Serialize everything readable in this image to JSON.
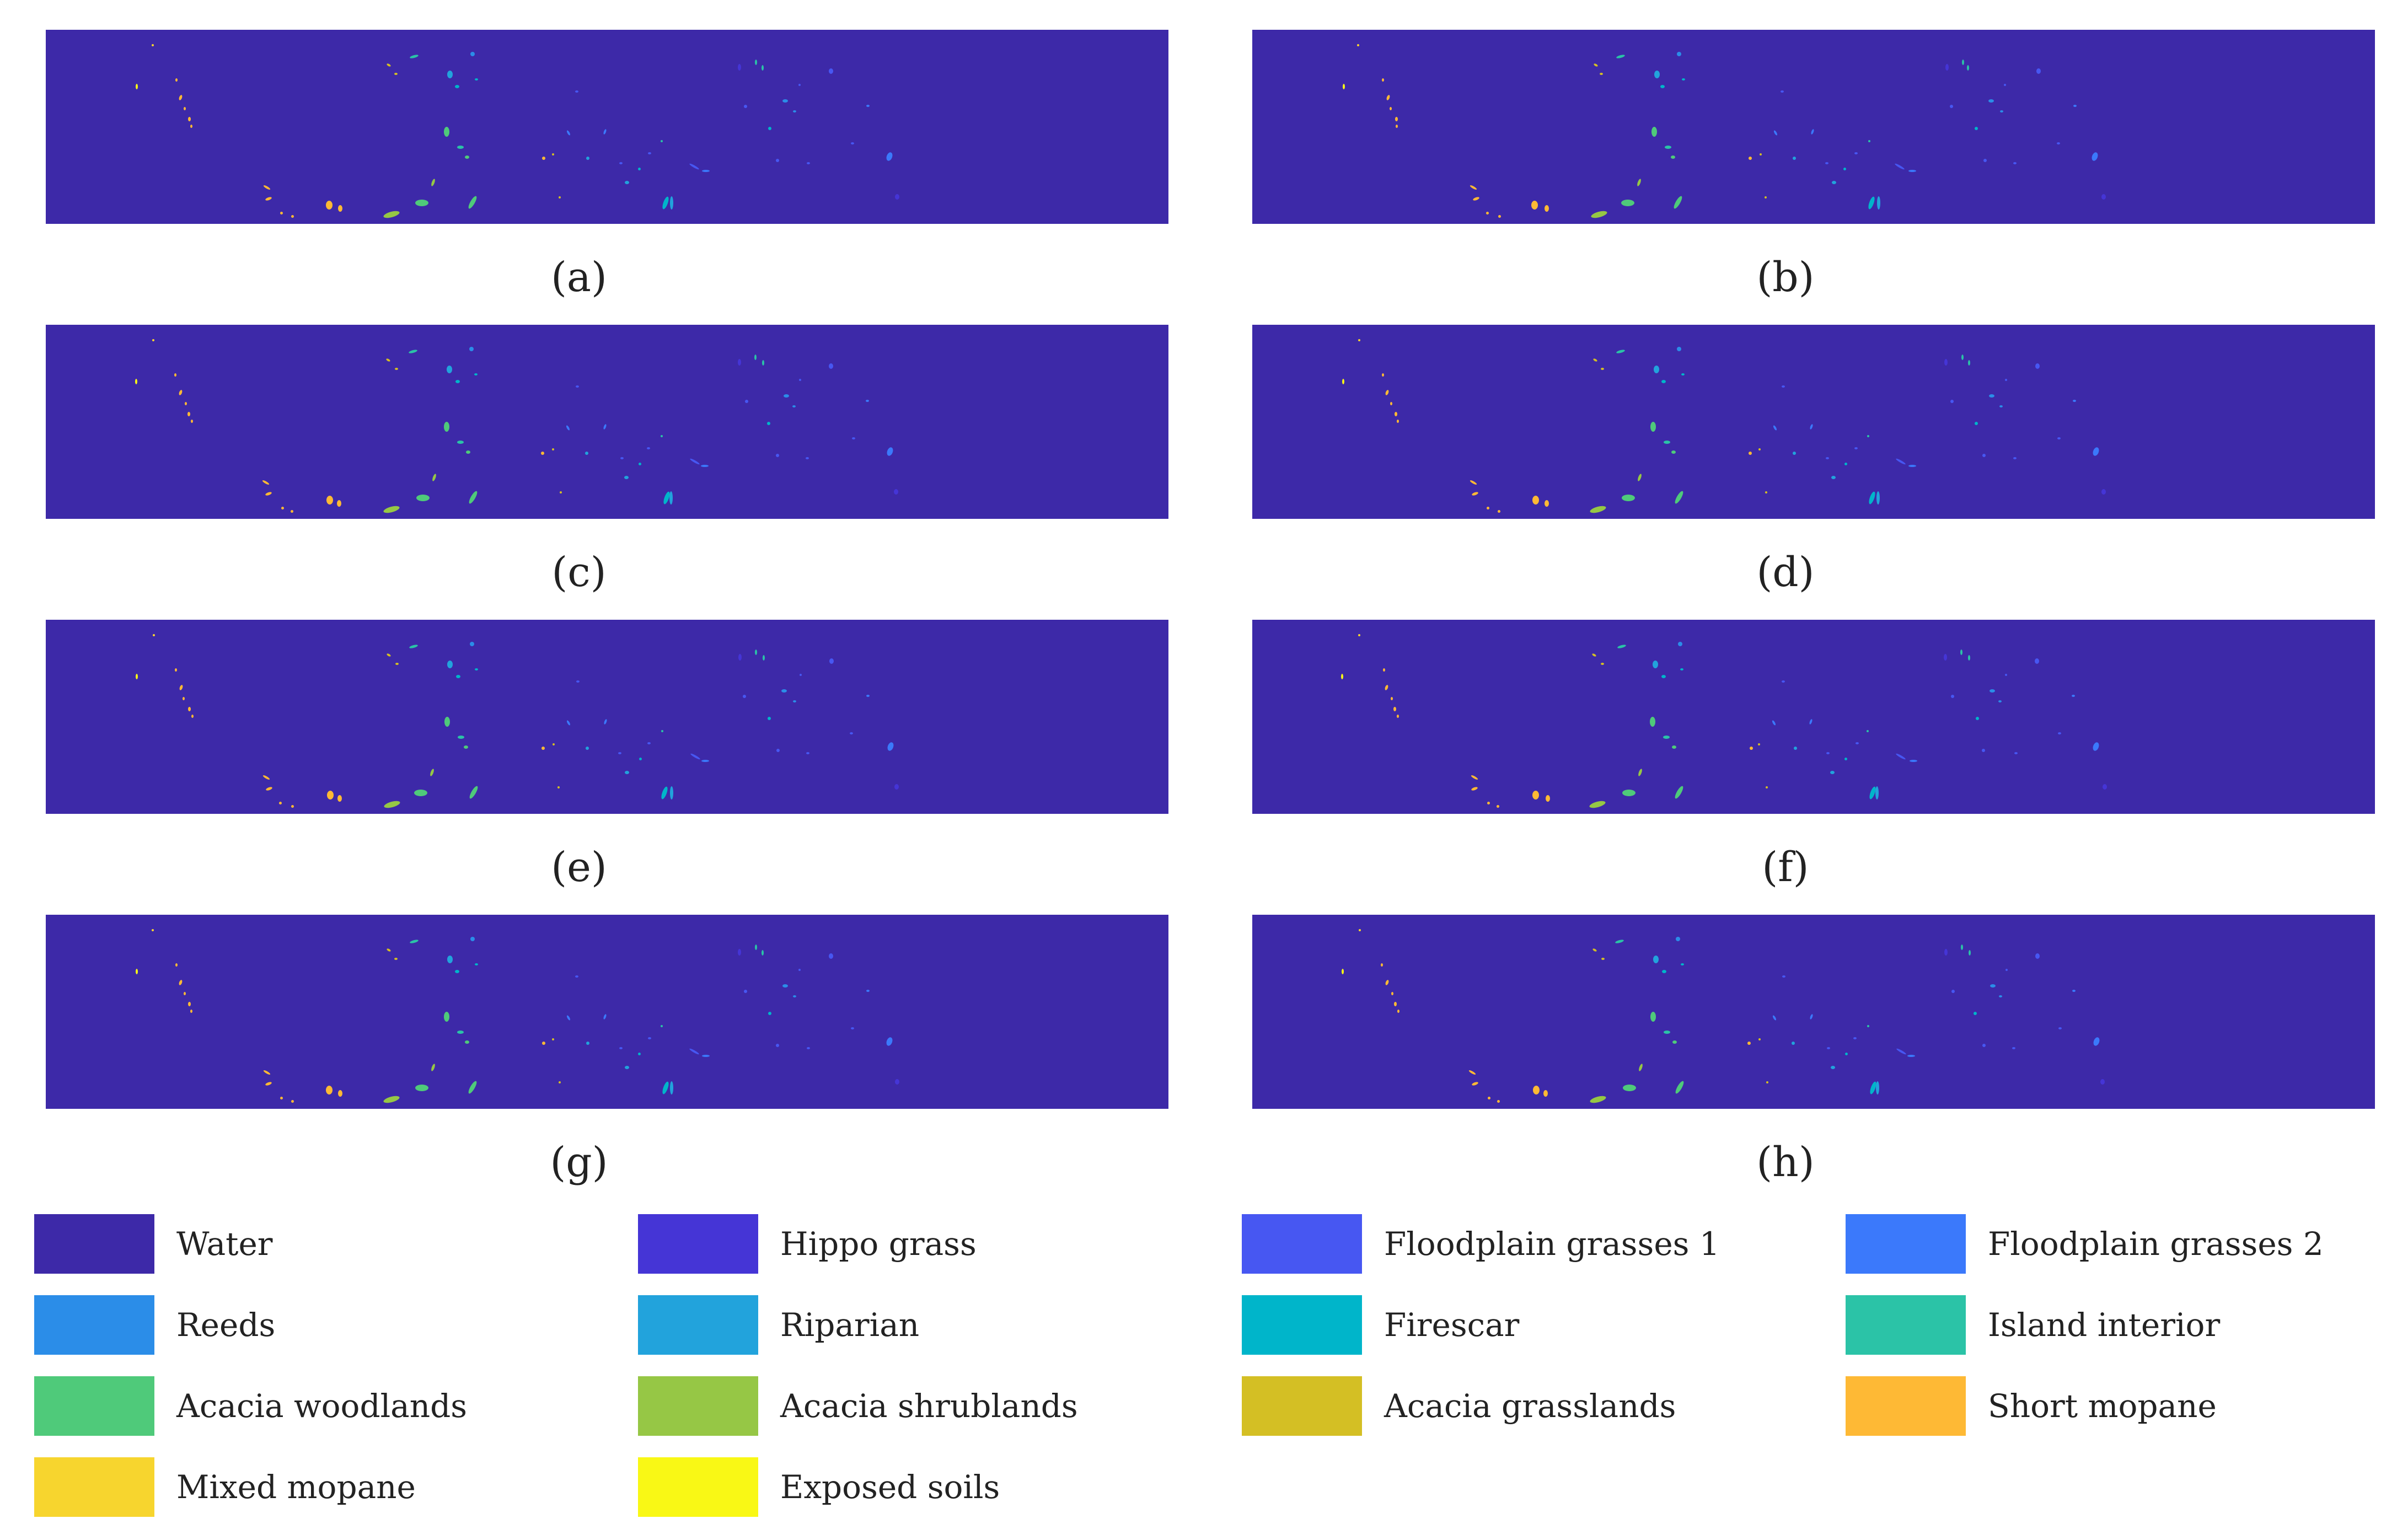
{
  "figure": {
    "panels": [
      {
        "id": "a",
        "caption": "(a)"
      },
      {
        "id": "b",
        "caption": "(b)"
      },
      {
        "id": "c",
        "caption": "(c)"
      },
      {
        "id": "d",
        "caption": "(d)"
      },
      {
        "id": "e",
        "caption": "(e)"
      },
      {
        "id": "f",
        "caption": "(f)"
      },
      {
        "id": "g",
        "caption": "(g)"
      },
      {
        "id": "h",
        "caption": "(h)"
      }
    ],
    "map_background_color": "#3d29a8"
  },
  "legend": {
    "items": [
      {
        "label": "Water",
        "color": "#3d29a8"
      },
      {
        "label": "Hippo grass",
        "color": "#4535d6"
      },
      {
        "label": "Floodplain grasses 1",
        "color": "#4757f2"
      },
      {
        "label": "Floodplain grasses 2",
        "color": "#3b79fb"
      },
      {
        "label": "Reeds",
        "color": "#2b8de8"
      },
      {
        "label": "Riparian",
        "color": "#22a3dc"
      },
      {
        "label": "Firescar",
        "color": "#00b5ca"
      },
      {
        "label": "Island interior",
        "color": "#2bc3a7"
      },
      {
        "label": "Acacia woodlands",
        "color": "#4fca7a"
      },
      {
        "label": "Acacia shrublands",
        "color": "#96c745"
      },
      {
        "label": "Acacia grasslands",
        "color": "#d4bf24"
      },
      {
        "label": "Short mopane",
        "color": "#feb935"
      },
      {
        "label": "Mixed mopane",
        "color": "#f7d52e"
      },
      {
        "label": "Exposed soils",
        "color": "#f9f815"
      }
    ]
  }
}
